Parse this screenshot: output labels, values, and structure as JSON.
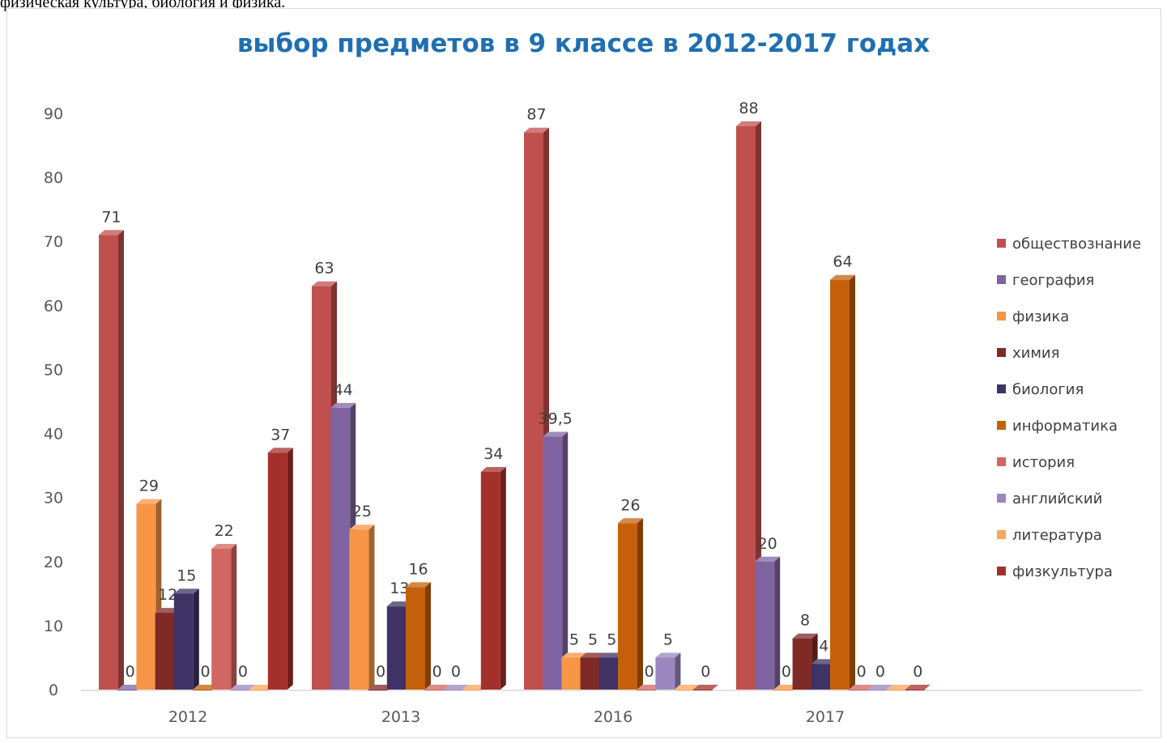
{
  "caption": "физическая культура, биология и физика.",
  "chart_data": {
    "type": "bar",
    "title": "выбор предметов в 9 классе в 2012-2017 годах",
    "categories": [
      "2012",
      "2013",
      "2016",
      "2017"
    ],
    "ylim": [
      0,
      90
    ],
    "yticks": [
      0,
      10,
      20,
      30,
      40,
      50,
      60,
      70,
      80,
      90
    ],
    "grid": false,
    "legend_position": "right",
    "series": [
      {
        "name": "обществознание",
        "color": "#c0504d",
        "values": [
          71,
          63,
          87,
          88
        ],
        "labels": [
          "71",
          "63",
          "87",
          "88"
        ]
      },
      {
        "name": "география",
        "color": "#8064a2",
        "values": [
          0,
          44,
          39.5,
          20
        ],
        "labels": [
          "0",
          "44",
          "39,5",
          "20"
        ]
      },
      {
        "name": "физика",
        "color": "#f79646",
        "values": [
          29,
          25,
          5,
          0
        ],
        "labels": [
          "29",
          "25",
          "5",
          "0"
        ]
      },
      {
        "name": "химия",
        "color": "#7f2a27",
        "values": [
          12,
          0,
          5,
          8
        ],
        "labels": [
          "12",
          "0",
          "5",
          "8"
        ]
      },
      {
        "name": "биология",
        "color": "#3f3264",
        "values": [
          15,
          13,
          5,
          4
        ],
        "labels": [
          "15",
          "13",
          "5",
          "4"
        ]
      },
      {
        "name": "информатика",
        "color": "#c5600a",
        "values": [
          0,
          16,
          26,
          64
        ],
        "labels": [
          "0",
          "16",
          "26",
          "64"
        ]
      },
      {
        "name": "история",
        "color": "#d26662",
        "values": [
          22,
          0,
          0,
          0
        ],
        "labels": [
          "22",
          "0",
          "0",
          "0"
        ]
      },
      {
        "name": "английский",
        "color": "#9b87bf",
        "values": [
          0,
          0,
          5,
          0
        ],
        "labels": [
          "0",
          "0",
          "5",
          "0"
        ]
      },
      {
        "name": "литература",
        "color": "#f9a55e",
        "values": [
          0,
          0,
          0,
          0
        ],
        "labels": [
          "",
          "",
          "",
          ""
        ]
      },
      {
        "name": "физкультура",
        "color": "#a4302c",
        "values": [
          37,
          34,
          0,
          0
        ],
        "labels": [
          "37",
          "34",
          "0",
          "0"
        ]
      }
    ]
  }
}
